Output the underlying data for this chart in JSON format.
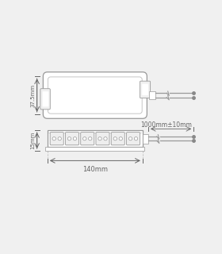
{
  "bg_color": "#f0f0f0",
  "line_color": "#b0b0b0",
  "line_color2": "#999999",
  "text_color": "#666666",
  "fig_w": 2.8,
  "fig_h": 3.2,
  "dim_37_5": "37.5mm",
  "dim_15": "15mm",
  "dim_140": "140mm",
  "dim_1000": "1000mm±10mm",
  "num_connectors": 6
}
